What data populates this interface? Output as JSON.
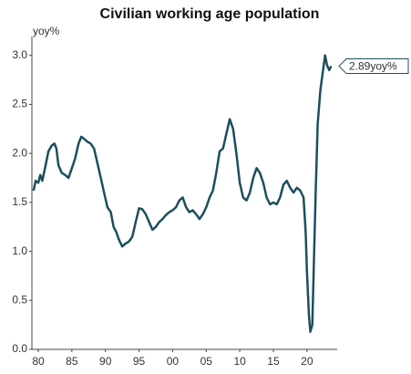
{
  "chart_data": {
    "type": "line",
    "title": "Civilian working age population",
    "y_label": "yoy%",
    "x": [
      1979.3,
      1979.6,
      1980,
      1980.3,
      1980.6,
      1981,
      1981.5,
      1982,
      1982.4,
      1982.7,
      1983,
      1983.5,
      1984,
      1984.5,
      1985,
      1985.5,
      1986,
      1986.4,
      1986.8,
      1987.3,
      1987.8,
      1988.3,
      1988.8,
      1989.3,
      1989.8,
      1990.3,
      1990.8,
      1991.2,
      1991.6,
      1992,
      1992.5,
      1993,
      1993.5,
      1994,
      1994.5,
      1995,
      1995.5,
      1996,
      1996.5,
      1997,
      1997.5,
      1998,
      1998.5,
      1999,
      1999.5,
      2000,
      2000.5,
      2001,
      2001.5,
      2002,
      2002.5,
      2003,
      2003.5,
      2004,
      2004.5,
      2005,
      2005.5,
      2006,
      2006.5,
      2007,
      2007.5,
      2008,
      2008.5,
      2009,
      2009.5,
      2010,
      2010.5,
      2011,
      2011.5,
      2012,
      2012.5,
      2013,
      2013.5,
      2014,
      2014.5,
      2015,
      2015.5,
      2016,
      2016.5,
      2017,
      2017.5,
      2018,
      2018.5,
      2019,
      2019.5,
      2019.8,
      2020,
      2020.3,
      2020.5,
      2020.8,
      2021,
      2021.3,
      2021.6,
      2022,
      2022.4,
      2022.7,
      2023,
      2023.3,
      2023.6
    ],
    "series": [
      {
        "name": "Civilian working age population",
        "color": "#1d4f5c",
        "values": [
          1.62,
          1.72,
          1.7,
          1.78,
          1.72,
          1.85,
          2.02,
          2.08,
          2.1,
          2.05,
          1.88,
          1.8,
          1.78,
          1.75,
          1.85,
          1.95,
          2.1,
          2.17,
          2.15,
          2.12,
          2.1,
          2.05,
          1.9,
          1.75,
          1.6,
          1.45,
          1.4,
          1.25,
          1.2,
          1.12,
          1.05,
          1.08,
          1.1,
          1.15,
          1.3,
          1.44,
          1.43,
          1.38,
          1.3,
          1.22,
          1.25,
          1.3,
          1.33,
          1.37,
          1.4,
          1.42,
          1.45,
          1.52,
          1.55,
          1.45,
          1.4,
          1.42,
          1.38,
          1.33,
          1.38,
          1.45,
          1.55,
          1.62,
          1.8,
          2.02,
          2.05,
          2.2,
          2.35,
          2.25,
          2.0,
          1.7,
          1.55,
          1.52,
          1.6,
          1.75,
          1.85,
          1.8,
          1.7,
          1.55,
          1.48,
          1.5,
          1.48,
          1.55,
          1.68,
          1.72,
          1.65,
          1.6,
          1.65,
          1.62,
          1.55,
          1.2,
          0.8,
          0.35,
          0.18,
          0.25,
          0.8,
          1.6,
          2.3,
          2.65,
          2.85,
          3.0,
          2.9,
          2.85,
          2.89
        ]
      }
    ],
    "annotation": {
      "value": 2.89,
      "label": "2.89yoy%"
    },
    "xlim": [
      1979.05,
      2024.5
    ],
    "xticks": [
      {
        "value": 1980,
        "label": "80"
      },
      {
        "value": 1985,
        "label": "85"
      },
      {
        "value": 1990,
        "label": "90"
      },
      {
        "value": 1995,
        "label": "95"
      },
      {
        "value": 2000,
        "label": "00"
      },
      {
        "value": 2005,
        "label": "05"
      },
      {
        "value": 2010,
        "label": "10"
      },
      {
        "value": 2015,
        "label": "15"
      },
      {
        "value": 2020,
        "label": "20"
      }
    ],
    "ylim": [
      0,
      3.1
    ],
    "yticks": [
      {
        "value": 0,
        "label": "0.0"
      },
      0.5,
      {
        "value": 1,
        "label": "1.0"
      },
      1.5,
      {
        "value": 2,
        "label": "2.0"
      },
      2.5,
      {
        "value": 3,
        "label": "3.0"
      }
    ],
    "grid": false
  }
}
